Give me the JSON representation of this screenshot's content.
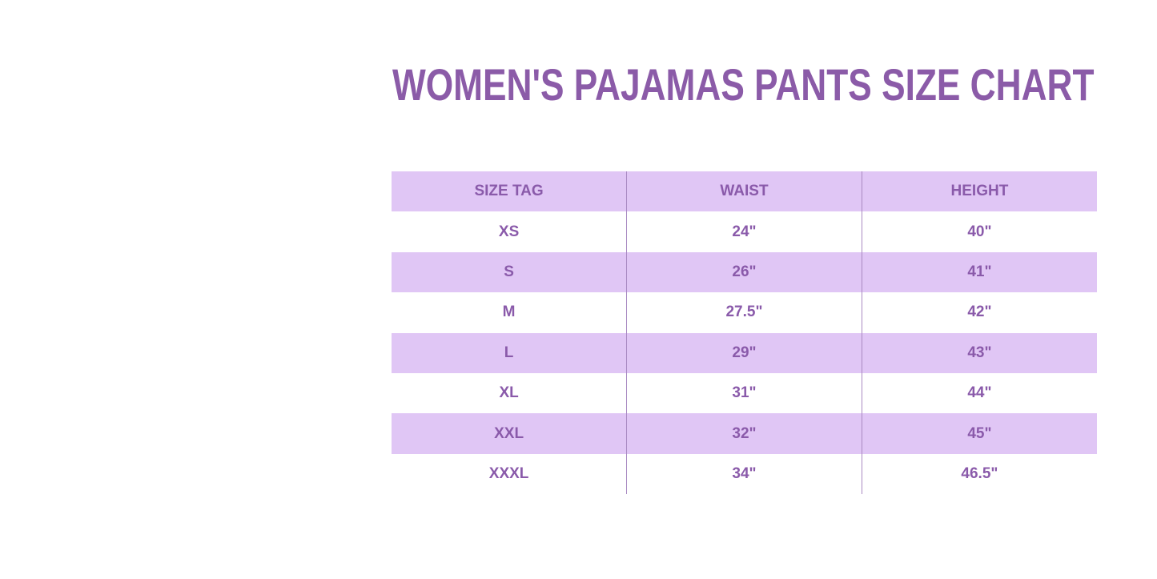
{
  "title": "WOMEN'S PAJAMAS PANTS SIZE CHART",
  "colors": {
    "accent": "#8b5ba8",
    "band": "#e0c6f5"
  },
  "table": {
    "headers": [
      "SIZE TAG",
      "WAIST",
      "HEIGHT"
    ],
    "rows": [
      [
        "XS",
        "24\"",
        "40\""
      ],
      [
        "S",
        "26\"",
        "41\""
      ],
      [
        "M",
        "27.5\"",
        "42\""
      ],
      [
        "L",
        "29\"",
        "43\""
      ],
      [
        "XL",
        "31\"",
        "44\""
      ],
      [
        "XXL",
        "32\"",
        "45\""
      ],
      [
        "XXXL",
        "34\"",
        "46.5\""
      ]
    ]
  }
}
